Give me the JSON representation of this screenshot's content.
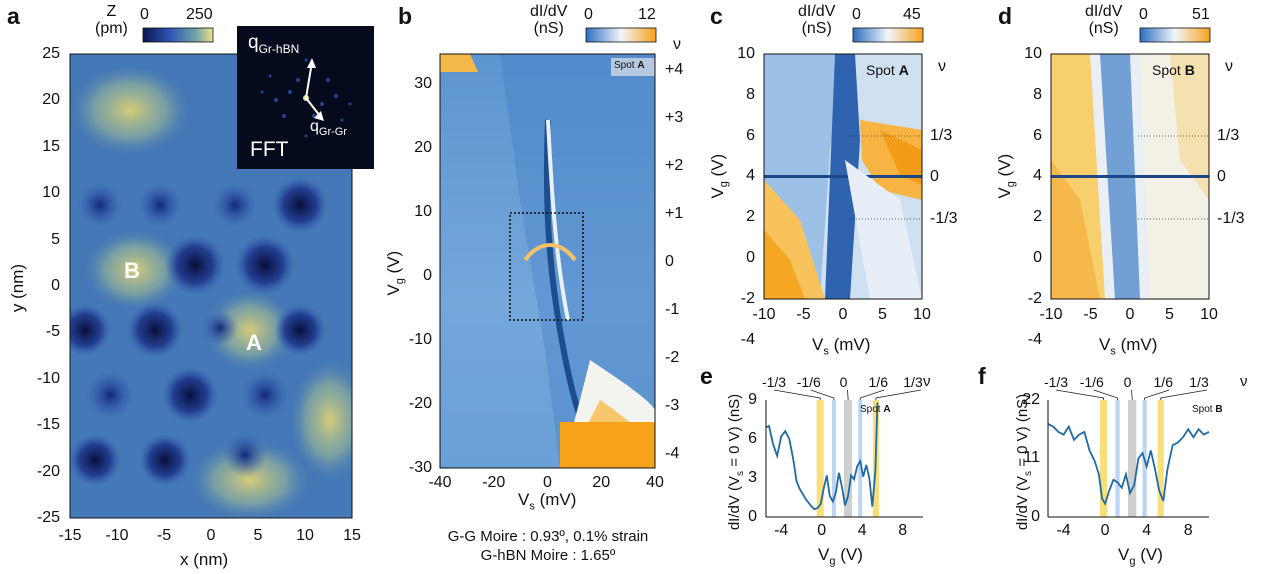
{
  "panel_labels": [
    "a",
    "b",
    "c",
    "d",
    "e",
    "f"
  ],
  "panel_a": {
    "colorbar_title": [
      "Z",
      "(pm)"
    ],
    "colorbar_range": [
      "0",
      "250"
    ],
    "xlabel": "x (nm)",
    "ylabel": "y (nm)",
    "xticks": [
      "-15",
      "-10",
      "-5",
      "0",
      "5",
      "10",
      "15"
    ],
    "yticks": [
      "25",
      "20",
      "15",
      "10",
      "5",
      "0",
      "-5",
      "-10",
      "-15",
      "-20",
      "-25"
    ],
    "site_labels": [
      "B",
      "A"
    ],
    "inset_title": "FFT",
    "inset_vec1": "q",
    "inset_vec1_sub": "Gr-hBN",
    "inset_vec2": "q",
    "inset_vec2_sub": "Gr-Gr"
  },
  "panel_b": {
    "colorbar_title": [
      "dI/dV",
      "(nS)"
    ],
    "colorbar_range": [
      "0",
      "12"
    ],
    "xlabel": "V",
    "xlabel_sub": "s",
    "xlabel_unit": " (mV)",
    "ylabel": "V",
    "ylabel_sub": "g",
    "ylabel_unit": " (V)",
    "xticks": [
      "-40",
      "-20",
      "0",
      "20",
      "40"
    ],
    "yticks": [
      "30",
      "20",
      "10",
      "0",
      "-10",
      "-20",
      "-30"
    ],
    "nu_title": "ν",
    "nu_ticks": [
      "+4",
      "+3",
      "+2",
      "+1",
      "0",
      "-1",
      "-2",
      "-3",
      "-4"
    ],
    "spot_label": "Spot ",
    "spot_bold": "A",
    "caption": [
      "G-G Moire : 0.93º, 0.1% strain",
      "G-hBN Moire : 1.65º"
    ]
  },
  "panel_c": {
    "colorbar_title": [
      "dI/dV",
      "(nS)"
    ],
    "colorbar_range": [
      "0",
      "45"
    ],
    "xlabel": "V",
    "xlabel_sub": "s",
    "xlabel_unit": " (mV)",
    "ylabel": "V",
    "ylabel_sub": "g",
    "ylabel_unit": " (V)",
    "xticks": [
      "-10",
      "-5",
      "0",
      "5",
      "10"
    ],
    "yticks": [
      "10",
      "8",
      "6",
      "4",
      "2",
      "0",
      "-2",
      "-4"
    ],
    "nu_title": "ν",
    "nu_ticks": [
      "1/3",
      "0",
      "-1/3"
    ],
    "spot_label": "Spot ",
    "spot_bold": "A"
  },
  "panel_d": {
    "colorbar_title": [
      "dI/dV",
      "(nS)"
    ],
    "colorbar_range": [
      "0",
      "51"
    ],
    "xlabel": "V",
    "xlabel_sub": "s",
    "xlabel_unit": " (mV)",
    "ylabel": "V",
    "ylabel_sub": "g",
    "ylabel_unit": " (V)",
    "xticks": [
      "-10",
      "-5",
      "0",
      "5",
      "10"
    ],
    "yticks": [
      "10",
      "8",
      "6",
      "4",
      "2",
      "0",
      "-2",
      "-4"
    ],
    "nu_title": "ν",
    "nu_ticks": [
      "1/3",
      "0",
      "-1/3"
    ],
    "spot_label": "Spot ",
    "spot_bold": "B"
  },
  "panel_e": {
    "ylabel": "dI/dV (V",
    "ylabel_sub": "s",
    "ylabel_unit": " = 0 V) (nS)",
    "xlabel": "V",
    "xlabel_sub": "g",
    "xlabel_unit": " (V)",
    "xticks": [
      "-4",
      "0",
      "4",
      "8"
    ],
    "yticks": [
      "9",
      "6",
      "3",
      "0"
    ],
    "nu_title": "ν",
    "nu_ticks": [
      "-1/3",
      "-1/6",
      "0",
      "1/6",
      "1/3"
    ],
    "spot_label": "Spot ",
    "spot_bold": "A"
  },
  "panel_f": {
    "ylabel": "dI/dV (V",
    "ylabel_sub": "s",
    "ylabel_unit": " = 0 V) (nS)",
    "xlabel": "V",
    "xlabel_sub": "g",
    "xlabel_unit": " (V)",
    "xticks": [
      "-4",
      "0",
      "4",
      "8"
    ],
    "yticks": [
      "22",
      "11",
      "0"
    ],
    "nu_title": "ν",
    "nu_ticks": [
      "-1/3",
      "-1/6",
      "0",
      "1/6",
      "1/3"
    ],
    "spot_label": "Spot ",
    "spot_bold": "B"
  },
  "colors": {
    "topo_dark": "#0b1550",
    "topo_mid": "#2f58b5",
    "topo_light": "#c8c373",
    "map_blue": "#2c6fbf",
    "map_white": "#f2f6fb",
    "map_orange": "#f7a21b",
    "trace": "#1f6aa5",
    "band_yellow": "#f8df7b",
    "band_blue": "#bcd5f2",
    "band_gray": "#cfcfcf"
  },
  "chart_data": [
    {
      "type": "line",
      "title": "",
      "xlabel": "Vg (V)",
      "ylabel": "dI/dV (Vs = 0 V) (nS)",
      "xlim": [
        -5.5,
        10
      ],
      "ylim": [
        0,
        9
      ],
      "annotation": "Spot A",
      "series": [
        {
          "x": [
            -5.5,
            -5.2,
            -4.8,
            -4.4,
            -4.0,
            -3.6,
            -3.2,
            -2.8,
            -2.5,
            -2.2,
            -1.9,
            -1.6,
            -1.3,
            -1.0,
            -0.7,
            -0.4,
            -0.1,
            0.2,
            0.5,
            0.8,
            1.1,
            1.4,
            1.7,
            2.0,
            2.3,
            2.6,
            2.9,
            3.2,
            3.5,
            3.8,
            4.1,
            4.4,
            4.7,
            5.0,
            5.3,
            5.5
          ],
          "y": [
            6.9,
            7.0,
            5.6,
            4.7,
            6.2,
            6.6,
            6.0,
            4.4,
            2.8,
            2.2,
            1.8,
            1.4,
            1.1,
            0.8,
            0.6,
            0.7,
            1.0,
            2.2,
            3.2,
            1.6,
            1.2,
            1.9,
            3.4,
            2.3,
            0.9,
            1.6,
            3.2,
            2.9,
            3.9,
            4.3,
            3.1,
            4.0,
            3.0,
            0.8,
            3.6,
            8.8
          ]
        }
      ]
    },
    {
      "type": "line",
      "title": "",
      "xlabel": "Vg (V)",
      "ylabel": "dI/dV (Vs = 0 V) (nS)",
      "xlim": [
        -5.5,
        10
      ],
      "ylim": [
        0,
        22
      ],
      "annotation": "Spot B",
      "series": [
        {
          "x": [
            -5.5,
            -5.0,
            -4.5,
            -4.0,
            -3.5,
            -3.0,
            -2.5,
            -2.0,
            -1.5,
            -1.0,
            -0.6,
            -0.3,
            0.0,
            0.4,
            0.8,
            1.2,
            1.6,
            2.0,
            2.4,
            2.8,
            3.2,
            3.6,
            4.0,
            4.4,
            4.8,
            5.2,
            5.6,
            6.0,
            6.5,
            7.0,
            7.5,
            8.0,
            8.5,
            9.0,
            9.5,
            10.0
          ],
          "y": [
            17.5,
            17.0,
            16.0,
            15.5,
            17.0,
            14.5,
            15.5,
            16.0,
            12.5,
            10.5,
            8.0,
            3.5,
            2.5,
            5.0,
            7.0,
            6.5,
            5.5,
            8.0,
            4.5,
            6.0,
            11.0,
            12.0,
            9.5,
            12.5,
            9.0,
            5.0,
            3.0,
            9.0,
            13.5,
            14.0,
            15.0,
            16.5,
            15.0,
            16.5,
            15.5,
            16.0
          ]
        }
      ]
    }
  ]
}
